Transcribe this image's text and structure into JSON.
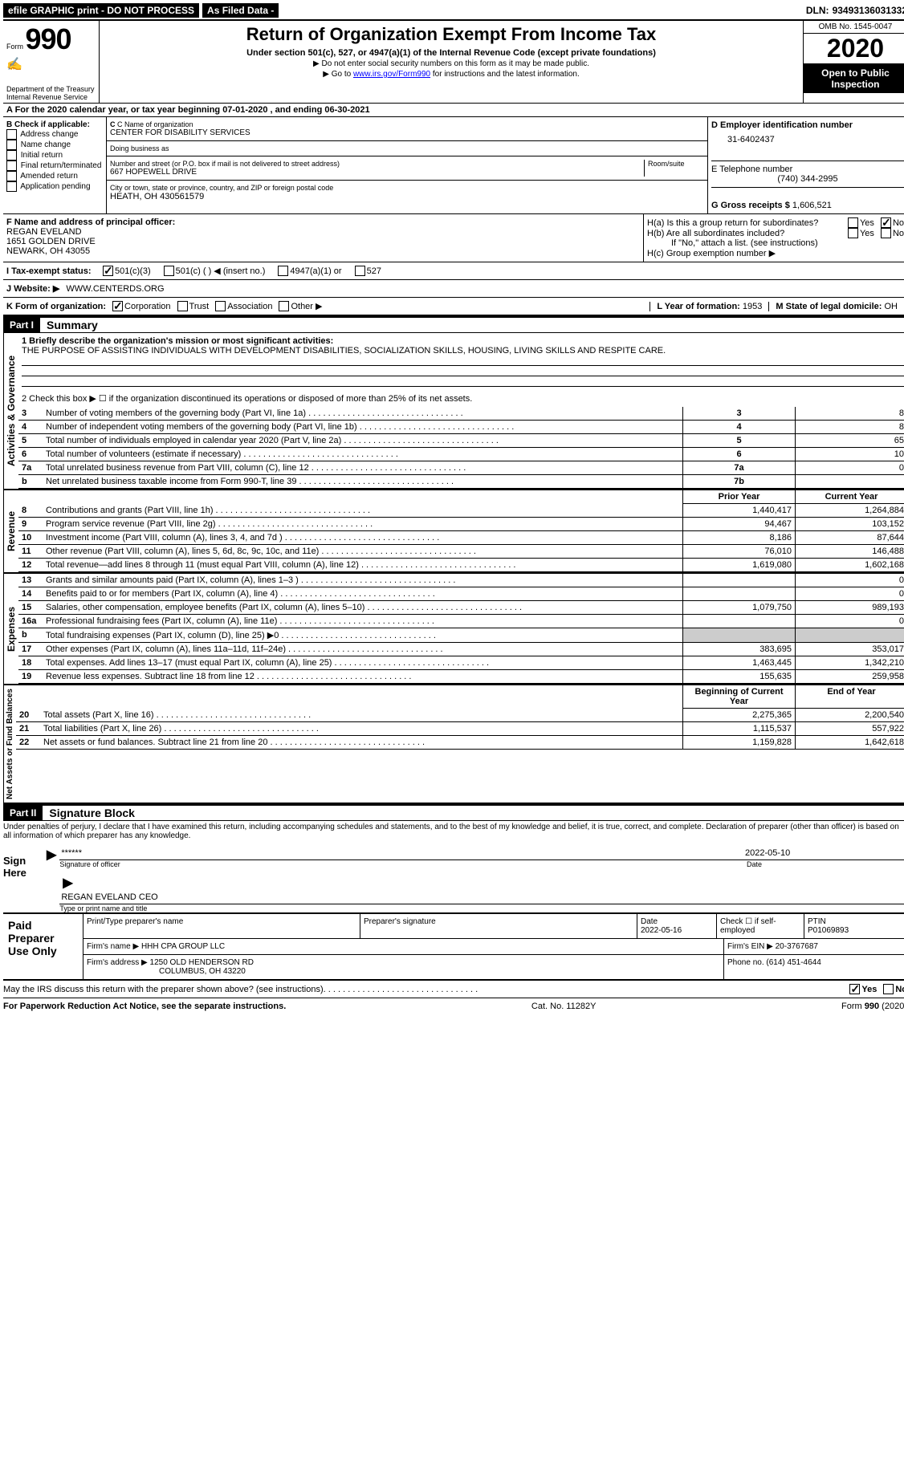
{
  "topbar": {
    "efile": "efile GRAPHIC print - DO NOT PROCESS",
    "asfiled": "As Filed Data -",
    "dln_label": "DLN:",
    "dln": "93493136031332"
  },
  "header": {
    "form_prefix": "Form",
    "form_no": "990",
    "dept": "Department of the Treasury\nInternal Revenue Service",
    "title": "Return of Organization Exempt From Income Tax",
    "subtitle": "Under section 501(c), 527, or 4947(a)(1) of the Internal Revenue Code (except private foundations)",
    "instr1": "▶ Do not enter social security numbers on this form as it may be made public.",
    "instr2_pre": "▶ Go to ",
    "instr2_link": "www.irs.gov/Form990",
    "instr2_post": " for instructions and the latest information.",
    "omb": "OMB No. 1545-0047",
    "year": "2020",
    "open": "Open to Public Inspection"
  },
  "sectionA": "A   For the 2020 calendar year, or tax year beginning 07-01-2020   , and ending 06-30-2021",
  "B": {
    "label": "B Check if applicable:",
    "items": [
      "Address change",
      "Name change",
      "Initial return",
      "Final return/terminated",
      "Amended return",
      "Application pending"
    ]
  },
  "C": {
    "name_label": "C Name of organization",
    "name": "CENTER FOR DISABILITY SERVICES",
    "dba_label": "Doing business as",
    "dba": "",
    "addr_label": "Number and street (or P.O. box if mail is not delivered to street address)",
    "room_label": "Room/suite",
    "addr": "667 HOPEWELL DRIVE",
    "city_label": "City or town, state or province, country, and ZIP or foreign postal code",
    "city": "HEATH, OH   430561579"
  },
  "D": {
    "label": "D Employer identification number",
    "val": "31-6402437"
  },
  "E": {
    "label": "E Telephone number",
    "val": "(740) 344-2995"
  },
  "G": {
    "label": "G Gross receipts $",
    "val": "1,606,521"
  },
  "F": {
    "label": "F  Name and address of principal officer:",
    "name": "REGAN EVELAND",
    "addr1": "1651 GOLDEN DRIVE",
    "addr2": "NEWARK, OH  43055"
  },
  "H": {
    "a": "H(a)  Is this a group return for subordinates?",
    "b": "H(b)  Are all subordinates included?",
    "b_note": "If \"No,\" attach a list. (see instructions)",
    "c": "H(c)  Group exemption number ▶"
  },
  "I": {
    "label": "I   Tax-exempt status:",
    "opts": [
      "501(c)(3)",
      "501(c) (  ) ◀ (insert no.)",
      "4947(a)(1) or",
      "527"
    ]
  },
  "J": {
    "label": "J   Website: ▶",
    "val": "WWW.CENTERDS.ORG"
  },
  "K": {
    "label": "K Form of organization:",
    "opts": [
      "Corporation",
      "Trust",
      "Association",
      "Other ▶"
    ]
  },
  "L": {
    "label": "L Year of formation:",
    "val": "1953"
  },
  "M": {
    "label": "M State of legal domicile:",
    "val": "OH"
  },
  "partI": {
    "label": "Part I",
    "title": "Summary"
  },
  "summary": {
    "l1_label": "1 Briefly describe the organization's mission or most significant activities:",
    "l1_text": "THE PURPOSE OF ASSISTING INDIVIDUALS WITH DEVELOPMENT DISABILITIES, SOCIALIZATION SKILLS, HOUSING, LIVING SKILLS AND RESPITE CARE.",
    "l2": "2  Check this box ▶ ☐ if the organization discontinued its operations or disposed of more than 25% of its net assets.",
    "rows_a": [
      {
        "n": "3",
        "t": "Number of voting members of the governing body (Part VI, line 1a)",
        "rn": "3",
        "v": "8"
      },
      {
        "n": "4",
        "t": "Number of independent voting members of the governing body (Part VI, line 1b)",
        "rn": "4",
        "v": "8"
      },
      {
        "n": "5",
        "t": "Total number of individuals employed in calendar year 2020 (Part V, line 2a)",
        "rn": "5",
        "v": "65"
      },
      {
        "n": "6",
        "t": "Total number of volunteers (estimate if necessary)",
        "rn": "6",
        "v": "10"
      },
      {
        "n": "7a",
        "t": "Total unrelated business revenue from Part VIII, column (C), line 12",
        "rn": "7a",
        "v": "0"
      },
      {
        "n": "b",
        "t": "Net unrelated business taxable income from Form 990-T, line 39",
        "rn": "7b",
        "v": ""
      }
    ],
    "prior": "Prior Year",
    "current": "Current Year",
    "revenue": [
      {
        "n": "8",
        "t": "Contributions and grants (Part VIII, line 1h)",
        "p": "1,440,417",
        "c": "1,264,884"
      },
      {
        "n": "9",
        "t": "Program service revenue (Part VIII, line 2g)",
        "p": "94,467",
        "c": "103,152"
      },
      {
        "n": "10",
        "t": "Investment income (Part VIII, column (A), lines 3, 4, and 7d )",
        "p": "8,186",
        "c": "87,644"
      },
      {
        "n": "11",
        "t": "Other revenue (Part VIII, column (A), lines 5, 6d, 8c, 9c, 10c, and 11e)",
        "p": "76,010",
        "c": "146,488"
      },
      {
        "n": "12",
        "t": "Total revenue—add lines 8 through 11 (must equal Part VIII, column (A), line 12)",
        "p": "1,619,080",
        "c": "1,602,168"
      }
    ],
    "expenses": [
      {
        "n": "13",
        "t": "Grants and similar amounts paid (Part IX, column (A), lines 1–3 )",
        "p": "",
        "c": "0"
      },
      {
        "n": "14",
        "t": "Benefits paid to or for members (Part IX, column (A), line 4)",
        "p": "",
        "c": "0"
      },
      {
        "n": "15",
        "t": "Salaries, other compensation, employee benefits (Part IX, column (A), lines 5–10)",
        "p": "1,079,750",
        "c": "989,193"
      },
      {
        "n": "16a",
        "t": "Professional fundraising fees (Part IX, column (A), line 11e)",
        "p": "",
        "c": "0"
      },
      {
        "n": "b",
        "t": "Total fundraising expenses (Part IX, column (D), line 25) ▶0",
        "p": "grey",
        "c": "grey"
      },
      {
        "n": "17",
        "t": "Other expenses (Part IX, column (A), lines 11a–11d, 11f–24e)",
        "p": "383,695",
        "c": "353,017"
      },
      {
        "n": "18",
        "t": "Total expenses. Add lines 13–17 (must equal Part IX, column (A), line 25)",
        "p": "1,463,445",
        "c": "1,342,210"
      },
      {
        "n": "19",
        "t": "Revenue less expenses. Subtract line 18 from line 12",
        "p": "155,635",
        "c": "259,958"
      }
    ],
    "begin": "Beginning of Current Year",
    "end": "End of Year",
    "netassets": [
      {
        "n": "20",
        "t": "Total assets (Part X, line 16)",
        "p": "2,275,365",
        "c": "2,200,540"
      },
      {
        "n": "21",
        "t": "Total liabilities (Part X, line 26)",
        "p": "1,115,537",
        "c": "557,922"
      },
      {
        "n": "22",
        "t": "Net assets or fund balances. Subtract line 21 from line 20",
        "p": "1,159,828",
        "c": "1,642,618"
      }
    ],
    "sections": {
      "ag": "Activities & Governance",
      "rev": "Revenue",
      "exp": "Expenses",
      "na": "Net Assets or Fund Balances"
    }
  },
  "partII": {
    "label": "Part II",
    "title": "Signature Block"
  },
  "sig": {
    "perjury": "Under penalties of perjury, I declare that I have examined this return, including accompanying schedules and statements, and to the best of my knowledge and belief, it is true, correct, and complete. Declaration of preparer (other than officer) is based on all information of which preparer has any knowledge.",
    "sign_here": "Sign Here",
    "stars": "******",
    "date": "2022-05-10",
    "sig_label": "Signature of officer",
    "date_label": "Date",
    "name": "REGAN EVELAND CEO",
    "name_label": "Type or print name and title"
  },
  "prep": {
    "label": "Paid Preparer Use Only",
    "h1": "Print/Type preparer's name",
    "h2": "Preparer's signature",
    "h3_label": "Date",
    "h3": "2022-05-16",
    "h4": "Check ☐ if self-employed",
    "h5_label": "PTIN",
    "h5": "P01069893",
    "firm_label": "Firm's name    ▶",
    "firm": "HHH CPA GROUP LLC",
    "ein_label": "Firm's EIN ▶",
    "ein": "20-3767687",
    "addr_label": "Firm's address ▶",
    "addr1": "1250 OLD HENDERSON RD",
    "addr2": "COLUMBUS, OH  43220",
    "phone_label": "Phone no.",
    "phone": "(614) 451-4644"
  },
  "discuss": {
    "q": "May the IRS discuss this return with the preparer shown above? (see instructions)",
    "yes": "Yes",
    "no": "No"
  },
  "footer": {
    "left": "For Paperwork Reduction Act Notice, see the separate instructions.",
    "mid": "Cat. No. 11282Y",
    "right_pre": "Form ",
    "right_form": "990",
    "right_post": " (2020)"
  }
}
